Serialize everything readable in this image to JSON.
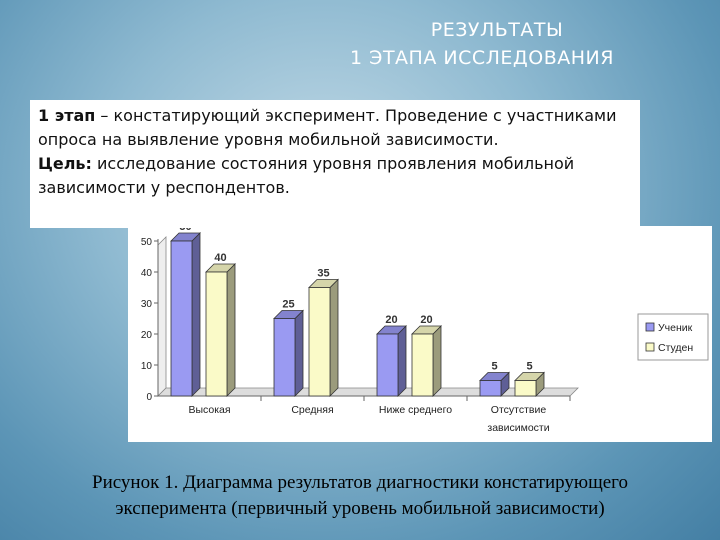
{
  "slide": {
    "title_line1": "РЕЗУЛЬТАТЫ",
    "title_line2": "1 ЭТАПА ИССЛЕДОВАНИЯ"
  },
  "textbox": {
    "stage_label": "1 этап",
    "stage_text": " – констатирующий эксперимент. Проведение  с участниками опроса на выявление уровня мобильной зависимости.",
    "goal_label": "Цель:",
    "goal_text": " исследование состояния уровня проявления мобильной зависимости у респондентов."
  },
  "caption": {
    "line1": "Рисунок 1.  Диаграмма результатов  диагностики  констатирующего",
    "line2": "эксперимента (первичный уровень мобильной зависимости)"
  },
  "colors": {
    "series1": "#9a9af2",
    "series2": "#fafac8",
    "chart_bg": "#ffffff"
  },
  "chart_data": {
    "type": "bar",
    "categories": [
      "Высокая",
      "Средняя",
      "Ниже среднего",
      "Отсутствие зависимости"
    ],
    "category_lines": [
      [
        "Высокая"
      ],
      [
        "Средняя"
      ],
      [
        "Ниже среднего"
      ],
      [
        "Отсутствие",
        "зависимости"
      ]
    ],
    "series": [
      {
        "name": "Ученик",
        "values": [
          50,
          25,
          20,
          5
        ]
      },
      {
        "name": "Студен",
        "values": [
          40,
          35,
          20,
          5
        ]
      }
    ],
    "ylim": [
      0,
      50
    ],
    "yticks": [
      0,
      10,
      20,
      30,
      40,
      50
    ],
    "grid": false,
    "legend": "right"
  }
}
